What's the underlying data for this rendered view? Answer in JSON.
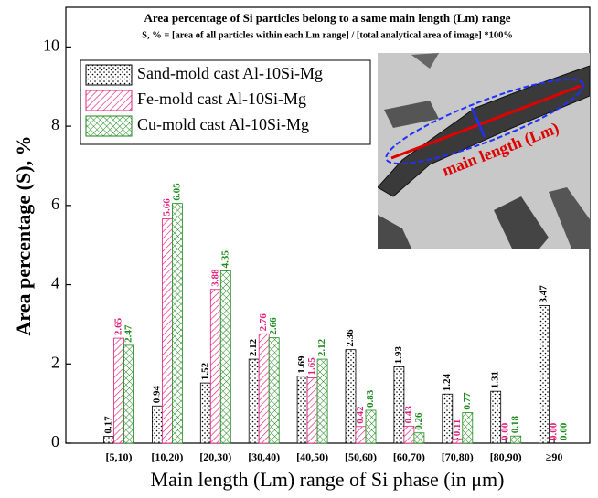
{
  "chart_data": {
    "type": "bar",
    "title": "Area percentage of Si particles belong to a same main length (Lm) range",
    "subtitle": "S, % = [area of all particles within each Lm range] / [total analytical area of image] *100%",
    "x_label": "Main length (Lm) range of Si phase (in μm)",
    "y_label": "Area percentage (S), %",
    "annotations": [
      "main length (Lm)"
    ],
    "categories": [
      "[5,10)",
      "[10,20)",
      "[20,30)",
      "[30,40)",
      "[40,50)",
      "[50,60)",
      "[60,70)",
      "[70,80)",
      "[80,90)",
      "≥90"
    ],
    "series": [
      {
        "name": "Sand-mold cast Al-10Si-Mg",
        "color": "#000000",
        "values": [
          0.17,
          0.94,
          1.52,
          2.12,
          1.69,
          2.36,
          1.93,
          1.24,
          1.31,
          3.47
        ],
        "value_labels": [
          "0.17",
          "0.94",
          "1.52",
          "2.12",
          "1.69",
          "2.36",
          "1.93",
          "1.24",
          "1.31",
          "3.47"
        ]
      },
      {
        "name": "Fe-mold cast Al-10Si-Mg",
        "color": "#e0207a",
        "values": [
          2.65,
          5.66,
          3.88,
          2.76,
          1.65,
          0.42,
          0.43,
          0.11,
          0.0,
          0.0
        ],
        "value_labels": [
          "2.65",
          "5.66",
          "3.88",
          "2.76",
          "1.65",
          "0.42",
          "0.43",
          "0.11",
          "0.00",
          "0.00"
        ]
      },
      {
        "name": "Cu-mold cast Al-10Si-Mg",
        "color": "#1a8a1a",
        "values": [
          2.47,
          6.05,
          4.35,
          2.66,
          2.12,
          0.83,
          0.26,
          0.77,
          0.18,
          0.0
        ],
        "value_labels": [
          "2.47",
          "6.05",
          "4.35",
          "2.66",
          "2.12",
          "0.83",
          "0.26",
          "0.77",
          "0.18",
          "0.00"
        ]
      }
    ],
    "ylim": [
      0,
      11
    ],
    "yticks": [
      0,
      2,
      4,
      6,
      8,
      10
    ],
    "legend": "upper left"
  }
}
